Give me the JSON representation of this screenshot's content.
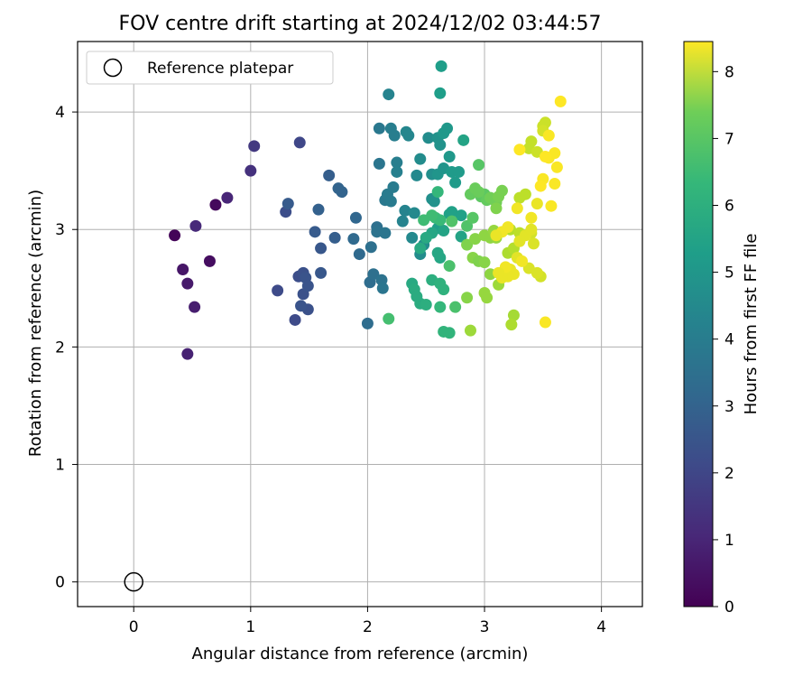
{
  "chart_data": {
    "type": "scatter",
    "title": "FOV centre drift starting at 2024/12/02 03:44:57",
    "xlabel": "Angular distance from reference (arcmin)",
    "ylabel": "Rotation from reference (arcmin)",
    "xlim": [
      -0.48,
      4.35
    ],
    "ylim": [
      -0.21,
      4.6
    ],
    "xticks": [
      0,
      1,
      2,
      3,
      4
    ],
    "yticks": [
      0,
      1,
      2,
      3,
      4
    ],
    "grid": true,
    "legend": {
      "placement": "top-left",
      "entries": [
        "Reference platepar"
      ]
    },
    "reference_point": {
      "x": 0,
      "y": 0,
      "label": "Reference platepar"
    },
    "colorbar": {
      "label": "Hours from first FF file",
      "range": [
        0,
        8.45
      ],
      "ticks": [
        0,
        1,
        2,
        3,
        4,
        5,
        6,
        7,
        8
      ],
      "colormap": "viridis"
    },
    "points": [
      [
        0.35,
        2.95,
        0.1
      ],
      [
        0.7,
        3.21,
        0.2
      ],
      [
        0.65,
        2.73,
        0.3
      ],
      [
        0.42,
        2.66,
        0.5
      ],
      [
        0.46,
        2.54,
        0.6
      ],
      [
        0.52,
        2.34,
        0.7
      ],
      [
        0.46,
        1.94,
        0.8
      ],
      [
        0.8,
        3.27,
        0.9
      ],
      [
        0.53,
        3.03,
        1.0
      ],
      [
        1.0,
        3.5,
        1.2
      ],
      [
        1.03,
        3.71,
        1.4
      ],
      [
        1.42,
        3.74,
        1.8
      ],
      [
        1.23,
        2.48,
        1.9
      ],
      [
        1.3,
        3.15,
        2.0
      ],
      [
        1.38,
        2.23,
        1.9
      ],
      [
        1.41,
        2.6,
        2.0
      ],
      [
        1.45,
        2.63,
        2.1
      ],
      [
        1.49,
        2.32,
        2.1
      ],
      [
        1.45,
        2.45,
        2.1
      ],
      [
        1.47,
        2.59,
        2.2
      ],
      [
        1.49,
        2.52,
        2.2
      ],
      [
        1.43,
        2.35,
        2.2
      ],
      [
        1.6,
        2.84,
        2.3
      ],
      [
        1.6,
        2.63,
        2.3
      ],
      [
        1.55,
        2.98,
        2.4
      ],
      [
        1.67,
        3.46,
        2.5
      ],
      [
        1.72,
        2.93,
        2.5
      ],
      [
        1.32,
        3.22,
        2.4
      ],
      [
        1.58,
        3.17,
        2.6
      ],
      [
        1.78,
        3.32,
        2.7
      ],
      [
        1.75,
        3.35,
        2.7
      ],
      [
        1.9,
        3.1,
        2.8
      ],
      [
        1.93,
        2.79,
        2.9
      ],
      [
        1.88,
        2.92,
        2.9
      ],
      [
        2.0,
        2.2,
        3.0
      ],
      [
        2.02,
        2.55,
        3.0
      ],
      [
        2.05,
        2.62,
        3.1
      ],
      [
        2.08,
        3.02,
        3.1
      ],
      [
        2.08,
        2.98,
        3.2
      ],
      [
        2.03,
        2.85,
        3.1
      ],
      [
        2.12,
        2.57,
        3.2
      ],
      [
        2.13,
        2.5,
        3.3
      ],
      [
        2.15,
        2.97,
        3.3
      ],
      [
        2.1,
        3.56,
        3.3
      ],
      [
        2.1,
        3.86,
        3.4
      ],
      [
        2.15,
        3.25,
        3.4
      ],
      [
        2.17,
        3.3,
        3.5
      ],
      [
        2.2,
        3.24,
        3.5
      ],
      [
        2.22,
        3.36,
        3.5
      ],
      [
        2.2,
        3.86,
        3.6
      ],
      [
        2.23,
        3.8,
        3.6
      ],
      [
        2.25,
        3.57,
        3.6
      ],
      [
        2.25,
        3.49,
        3.7
      ],
      [
        2.18,
        4.15,
        3.8
      ],
      [
        2.3,
        3.07,
        3.8
      ],
      [
        2.32,
        3.16,
        3.8
      ],
      [
        2.33,
        3.83,
        3.9
      ],
      [
        2.35,
        3.8,
        3.9
      ],
      [
        2.38,
        2.93,
        4.0
      ],
      [
        2.4,
        3.14,
        4.0
      ],
      [
        2.42,
        3.46,
        4.0
      ],
      [
        2.45,
        3.6,
        4.1
      ],
      [
        2.45,
        2.79,
        4.1
      ],
      [
        2.48,
        2.87,
        4.1
      ],
      [
        2.52,
        3.78,
        4.1
      ],
      [
        2.55,
        3.47,
        4.2
      ],
      [
        2.55,
        3.26,
        4.2
      ],
      [
        2.57,
        3.24,
        4.3
      ],
      [
        2.6,
        3.78,
        4.3
      ],
      [
        2.62,
        3.72,
        4.3
      ],
      [
        2.6,
        3.47,
        4.4
      ],
      [
        2.65,
        3.52,
        4.4
      ],
      [
        2.65,
        3.82,
        4.5
      ],
      [
        2.68,
        3.86,
        4.5
      ],
      [
        2.7,
        3.62,
        4.5
      ],
      [
        2.72,
        3.49,
        4.6
      ],
      [
        2.75,
        3.4,
        4.6
      ],
      [
        2.78,
        3.49,
        4.6
      ],
      [
        2.62,
        4.16,
        4.7
      ],
      [
        2.63,
        4.39,
        4.7
      ],
      [
        2.6,
        3.01,
        4.7
      ],
      [
        2.7,
        3.13,
        4.8
      ],
      [
        2.72,
        3.15,
        4.8
      ],
      [
        2.8,
        3.12,
        4.8
      ],
      [
        2.82,
        3.76,
        4.9
      ],
      [
        2.8,
        2.94,
        4.9
      ],
      [
        2.65,
        2.99,
        4.9
      ],
      [
        2.6,
        2.8,
        5.0
      ],
      [
        2.62,
        2.76,
        5.0
      ],
      [
        2.55,
        2.97,
        5.0
      ],
      [
        2.5,
        2.93,
        5.1
      ],
      [
        2.45,
        2.84,
        5.1
      ],
      [
        2.38,
        2.54,
        5.1
      ],
      [
        2.4,
        2.49,
        5.2
      ],
      [
        2.45,
        2.37,
        5.2
      ],
      [
        2.42,
        2.43,
        5.2
      ],
      [
        2.5,
        2.36,
        5.3
      ],
      [
        2.55,
        2.57,
        5.3
      ],
      [
        2.62,
        2.54,
        5.4
      ],
      [
        2.65,
        2.49,
        5.4
      ],
      [
        2.7,
        2.12,
        5.5
      ],
      [
        2.65,
        2.13,
        5.5
      ],
      [
        2.62,
        2.34,
        5.6
      ],
      [
        2.6,
        3.32,
        5.6
      ],
      [
        2.62,
        3.08,
        5.7
      ],
      [
        2.58,
        3.1,
        5.7
      ],
      [
        2.55,
        3.12,
        5.8
      ],
      [
        2.48,
        3.08,
        5.8
      ],
      [
        2.18,
        2.24,
        5.9
      ],
      [
        2.75,
        2.34,
        6.0
      ],
      [
        2.7,
        2.69,
        6.0
      ],
      [
        2.72,
        3.07,
        6.1
      ],
      [
        2.85,
        3.03,
        6.1
      ],
      [
        2.9,
        3.1,
        6.2
      ],
      [
        2.95,
        3.55,
        6.2
      ],
      [
        2.97,
        3.28,
        6.3
      ],
      [
        3.0,
        3.3,
        6.3
      ],
      [
        3.02,
        3.25,
        6.4
      ],
      [
        2.88,
        3.3,
        6.4
      ],
      [
        2.92,
        3.35,
        6.5
      ],
      [
        2.95,
        3.32,
        6.5
      ],
      [
        3.05,
        3.27,
        6.6
      ],
      [
        3.1,
        3.23,
        6.6
      ],
      [
        3.12,
        3.28,
        6.7
      ],
      [
        3.15,
        3.33,
        6.7
      ],
      [
        3.1,
        3.18,
        6.8
      ],
      [
        2.85,
        2.87,
        6.8
      ],
      [
        2.9,
        2.76,
        6.9
      ],
      [
        2.92,
        2.92,
        6.9
      ],
      [
        3.0,
        2.95,
        7.0
      ],
      [
        3.05,
        2.93,
        7.0
      ],
      [
        3.08,
        2.99,
        7.1
      ],
      [
        3.1,
        2.93,
        7.1
      ],
      [
        2.95,
        2.73,
        6.8
      ],
      [
        3.0,
        2.72,
        6.9
      ],
      [
        3.05,
        2.62,
        7.0
      ],
      [
        3.0,
        2.46,
        7.1
      ],
      [
        3.02,
        2.42,
        7.1
      ],
      [
        3.12,
        2.53,
        7.2
      ],
      [
        2.88,
        2.14,
        7.2
      ],
      [
        2.85,
        2.42,
        6.9
      ],
      [
        3.25,
        2.27,
        7.3
      ],
      [
        3.23,
        2.19,
        7.4
      ],
      [
        3.2,
        2.8,
        7.4
      ],
      [
        3.25,
        2.84,
        7.5
      ],
      [
        3.22,
        3.0,
        7.5
      ],
      [
        3.3,
        2.97,
        7.6
      ],
      [
        3.3,
        3.27,
        7.6
      ],
      [
        3.35,
        3.3,
        7.6
      ],
      [
        3.38,
        3.69,
        7.7
      ],
      [
        3.4,
        3.75,
        7.7
      ],
      [
        3.45,
        3.66,
        7.8
      ],
      [
        3.5,
        3.88,
        7.8
      ],
      [
        3.52,
        3.91,
        7.8
      ],
      [
        3.5,
        3.84,
        7.9
      ],
      [
        3.48,
        2.6,
        7.9
      ],
      [
        3.4,
        2.97,
        7.9
      ],
      [
        3.42,
        2.88,
        8.0
      ],
      [
        3.38,
        2.67,
        8.0
      ],
      [
        3.45,
        2.63,
        8.0
      ],
      [
        3.35,
        2.95,
        8.1
      ],
      [
        3.3,
        2.9,
        8.1
      ],
      [
        3.28,
        2.76,
        8.1
      ],
      [
        3.25,
        2.62,
        8.2
      ],
      [
        3.22,
        2.66,
        8.2
      ],
      [
        3.2,
        2.6,
        8.2
      ],
      [
        3.15,
        2.59,
        8.2
      ],
      [
        3.18,
        2.68,
        8.3
      ],
      [
        3.2,
        3.02,
        8.3
      ],
      [
        3.32,
        2.73,
        8.3
      ],
      [
        3.28,
        3.18,
        8.3
      ],
      [
        3.4,
        3.1,
        8.3
      ],
      [
        3.5,
        3.43,
        8.4
      ],
      [
        3.55,
        3.61,
        8.4
      ],
      [
        3.6,
        3.65,
        8.4
      ],
      [
        3.62,
        3.53,
        8.4
      ],
      [
        3.6,
        3.39,
        8.4
      ],
      [
        3.57,
        3.2,
        8.4
      ],
      [
        3.52,
        2.21,
        8.4
      ],
      [
        3.65,
        4.09,
        8.45
      ],
      [
        3.52,
        3.62,
        8.45
      ],
      [
        3.48,
        3.37,
        8.45
      ],
      [
        3.3,
        3.68,
        8.45
      ],
      [
        3.55,
        3.8,
        8.4
      ],
      [
        3.12,
        2.63,
        8.2
      ],
      [
        3.15,
        2.98,
        8.3
      ],
      [
        3.1,
        2.95,
        8.2
      ],
      [
        3.4,
        3.0,
        8.1
      ],
      [
        3.45,
        3.22,
        8.2
      ]
    ]
  }
}
